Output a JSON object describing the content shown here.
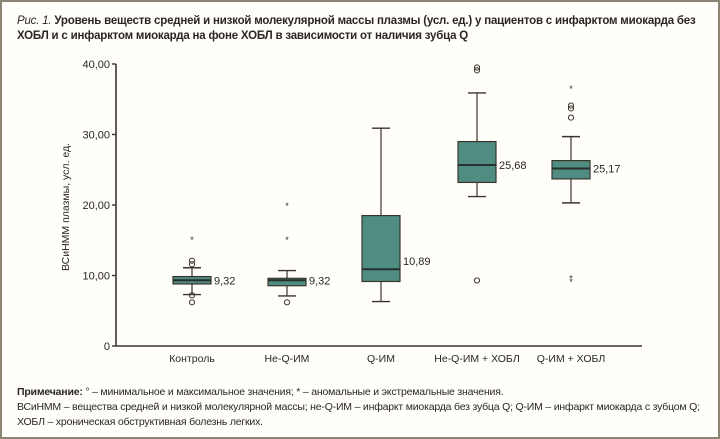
{
  "caption": {
    "label": "Рис. 1.",
    "text": "Уровень веществ средней и низкой молекулярной массы плазмы (усл. ед.) у пациентов с инфарктом миокарда без ХОБЛ и с инфарктом миокарда на фоне ХОБЛ в зависимости от наличия зубца Q"
  },
  "note": {
    "label": "Примечание:",
    "line1": "° – минимальное и максимальное значения; * – аномальные и экстремальные значения.",
    "line2": "ВСиНММ – вещества средней и низкой молекулярной массы; не-Q-ИМ – инфаркт миокарда без зубца Q; Q-ИМ – инфаркт миокарда с зубцом Q; ХОБЛ – хроническая обструктивная болезнь легких."
  },
  "colors": {
    "box_fill": "#4f8c81",
    "line": "#3a352b",
    "frame": "#8c8474"
  },
  "chart_data": {
    "type": "boxplot",
    "title": "",
    "xlabel": "",
    "ylabel": "ВСиНММ плазмы, усл. ед.",
    "ylim": [
      0,
      40
    ],
    "yticks": [
      0,
      10,
      20,
      30,
      40
    ],
    "ytick_labels": [
      "0",
      "10,00",
      "20,00",
      "30,00",
      "40,00"
    ],
    "grid": false,
    "categories": [
      "Контроль",
      "Не-Q-ИМ",
      "Q-ИМ",
      "Не-Q-ИМ + ХОБЛ",
      "Q-ИМ + ХОБЛ"
    ],
    "boxes": [
      {
        "whisker_low": 7.3,
        "q1": 8.8,
        "median": 9.32,
        "q3": 9.85,
        "whisker_high": 11.1,
        "median_label": "9,32",
        "outliers": [
          12.1,
          11.6,
          7.2,
          6.2
        ],
        "extremes": [
          15.2
        ]
      },
      {
        "whisker_low": 7.1,
        "q1": 8.55,
        "median": 9.32,
        "q3": 9.6,
        "whisker_high": 10.7,
        "median_label": "9,32",
        "outliers": [
          6.2
        ],
        "extremes": [
          20.0,
          15.2
        ]
      },
      {
        "whisker_low": 6.3,
        "q1": 9.15,
        "median": 10.89,
        "q3": 18.5,
        "whisker_high": 30.9,
        "median_label": "10,89",
        "outliers": [],
        "extremes": []
      },
      {
        "whisker_low": 21.2,
        "q1": 23.2,
        "median": 25.68,
        "q3": 29.0,
        "whisker_high": 35.9,
        "median_label": "25,68",
        "outliers": [
          39.5,
          39.1,
          9.3
        ],
        "extremes": []
      },
      {
        "whisker_low": 20.3,
        "q1": 23.7,
        "median": 25.17,
        "q3": 26.3,
        "whisker_high": 29.7,
        "median_label": "25,17",
        "outliers": [
          34.1,
          33.7,
          32.4
        ],
        "extremes": [
          36.6,
          9.7,
          9.2
        ]
      }
    ]
  }
}
